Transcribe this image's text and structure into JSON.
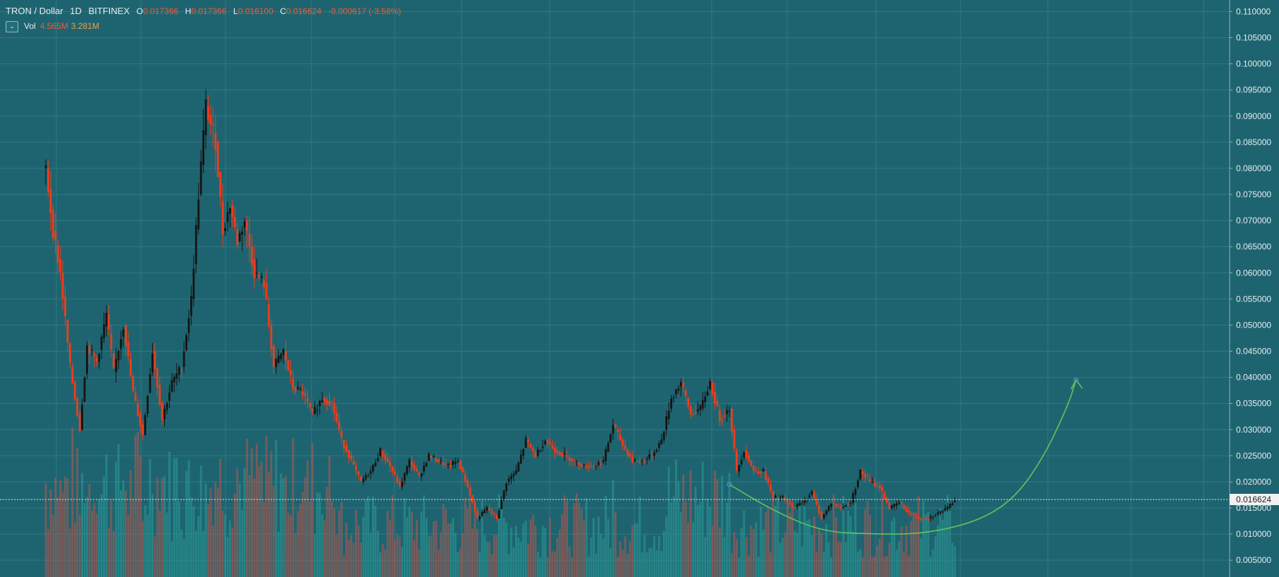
{
  "header": {
    "symbol": "TRON / Dollar",
    "interval": "1D",
    "exchange": "BITFINEX",
    "o_label": "O",
    "o_value": "0.017366",
    "h_label": "H",
    "h_value": "0.017366",
    "l_label": "L",
    "l_value": "0.016100",
    "c_label": "C",
    "c_value": "0.016624",
    "change": "-0.000617 (-3.58%)"
  },
  "volume": {
    "collapse_icon": "chevron-down-icon",
    "label": "Vol",
    "value1": "4.565M",
    "value2": "3.281M"
  },
  "colors": {
    "background": "#1e6470",
    "grid": "#2e7884",
    "axis_text": "#e6edf0",
    "candle_down": "#ef3d1a",
    "candle_up": "#141414",
    "volume_down": "#b0574d",
    "volume_up": "#2a9a94",
    "projection_curve": "#5fc45a",
    "price_line": "#e6edf0"
  },
  "price_axis": {
    "ticks": [
      "0.110000",
      "0.105000",
      "0.100000",
      "0.095000",
      "0.090000",
      "0.085000",
      "0.080000",
      "0.075000",
      "0.070000",
      "0.065000",
      "0.060000",
      "0.055000",
      "0.050000",
      "0.045000",
      "0.040000",
      "0.035000",
      "0.030000",
      "0.025000",
      "0.020000",
      "0.015000",
      "0.010000",
      "0.005000"
    ],
    "current_price": "0.016624"
  },
  "chart_data": {
    "type": "candlestick",
    "title": "TRON / Dollar",
    "interval": "1D",
    "exchange": "BITFINEX",
    "ylim": [
      0.003,
      0.111
    ],
    "y_scale": "linear",
    "grid": true,
    "close_series_approx": [
      {
        "t": 0,
        "close": 0.08
      },
      {
        "t": 3,
        "close": 0.068
      },
      {
        "t": 6,
        "close": 0.06
      },
      {
        "t": 10,
        "close": 0.042
      },
      {
        "t": 14,
        "close": 0.03
      },
      {
        "t": 17,
        "close": 0.046
      },
      {
        "t": 21,
        "close": 0.043
      },
      {
        "t": 25,
        "close": 0.052
      },
      {
        "t": 28,
        "close": 0.041
      },
      {
        "t": 32,
        "close": 0.05
      },
      {
        "t": 36,
        "close": 0.037
      },
      {
        "t": 40,
        "close": 0.029
      },
      {
        "t": 44,
        "close": 0.045
      },
      {
        "t": 48,
        "close": 0.032
      },
      {
        "t": 52,
        "close": 0.039
      },
      {
        "t": 56,
        "close": 0.042
      },
      {
        "t": 60,
        "close": 0.055
      },
      {
        "t": 63,
        "close": 0.075
      },
      {
        "t": 66,
        "close": 0.092
      },
      {
        "t": 70,
        "close": 0.085
      },
      {
        "t": 73,
        "close": 0.068
      },
      {
        "t": 76,
        "close": 0.073
      },
      {
        "t": 79,
        "close": 0.066
      },
      {
        "t": 82,
        "close": 0.07
      },
      {
        "t": 86,
        "close": 0.06
      },
      {
        "t": 90,
        "close": 0.058
      },
      {
        "t": 94,
        "close": 0.042
      },
      {
        "t": 98,
        "close": 0.045
      },
      {
        "t": 102,
        "close": 0.038
      },
      {
        "t": 106,
        "close": 0.037
      },
      {
        "t": 110,
        "close": 0.033
      },
      {
        "t": 114,
        "close": 0.036
      },
      {
        "t": 118,
        "close": 0.035
      },
      {
        "t": 122,
        "close": 0.028
      },
      {
        "t": 126,
        "close": 0.024
      },
      {
        "t": 130,
        "close": 0.02
      },
      {
        "t": 134,
        "close": 0.022
      },
      {
        "t": 138,
        "close": 0.026
      },
      {
        "t": 142,
        "close": 0.023
      },
      {
        "t": 146,
        "close": 0.019
      },
      {
        "t": 150,
        "close": 0.024
      },
      {
        "t": 154,
        "close": 0.021
      },
      {
        "t": 158,
        "close": 0.025
      },
      {
        "t": 162,
        "close": 0.024
      },
      {
        "t": 166,
        "close": 0.023
      },
      {
        "t": 170,
        "close": 0.024
      },
      {
        "t": 174,
        "close": 0.019
      },
      {
        "t": 178,
        "close": 0.013
      },
      {
        "t": 182,
        "close": 0.015
      },
      {
        "t": 186,
        "close": 0.013
      },
      {
        "t": 190,
        "close": 0.02
      },
      {
        "t": 194,
        "close": 0.022
      },
      {
        "t": 198,
        "close": 0.028
      },
      {
        "t": 202,
        "close": 0.025
      },
      {
        "t": 206,
        "close": 0.028
      },
      {
        "t": 210,
        "close": 0.026
      },
      {
        "t": 214,
        "close": 0.025
      },
      {
        "t": 218,
        "close": 0.024
      },
      {
        "t": 222,
        "close": 0.023
      },
      {
        "t": 226,
        "close": 0.023
      },
      {
        "t": 230,
        "close": 0.024
      },
      {
        "t": 234,
        "close": 0.031
      },
      {
        "t": 238,
        "close": 0.027
      },
      {
        "t": 242,
        "close": 0.024
      },
      {
        "t": 246,
        "close": 0.024
      },
      {
        "t": 250,
        "close": 0.025
      },
      {
        "t": 254,
        "close": 0.028
      },
      {
        "t": 258,
        "close": 0.036
      },
      {
        "t": 262,
        "close": 0.039
      },
      {
        "t": 266,
        "close": 0.033
      },
      {
        "t": 270,
        "close": 0.034
      },
      {
        "t": 274,
        "close": 0.039
      },
      {
        "t": 278,
        "close": 0.032
      },
      {
        "t": 282,
        "close": 0.034
      },
      {
        "t": 285,
        "close": 0.022
      },
      {
        "t": 288,
        "close": 0.026
      },
      {
        "t": 292,
        "close": 0.022
      },
      {
        "t": 296,
        "close": 0.022
      },
      {
        "t": 300,
        "close": 0.017
      },
      {
        "t": 304,
        "close": 0.017
      },
      {
        "t": 308,
        "close": 0.015
      },
      {
        "t": 312,
        "close": 0.016
      },
      {
        "t": 316,
        "close": 0.018
      },
      {
        "t": 320,
        "close": 0.013
      },
      {
        "t": 324,
        "close": 0.016
      },
      {
        "t": 328,
        "close": 0.015
      },
      {
        "t": 332,
        "close": 0.016
      },
      {
        "t": 336,
        "close": 0.022
      },
      {
        "t": 340,
        "close": 0.02
      },
      {
        "t": 344,
        "close": 0.019
      },
      {
        "t": 348,
        "close": 0.015
      },
      {
        "t": 352,
        "close": 0.016
      },
      {
        "t": 356,
        "close": 0.014
      },
      {
        "t": 360,
        "close": 0.013
      },
      {
        "t": 364,
        "close": 0.013
      },
      {
        "t": 368,
        "close": 0.014
      },
      {
        "t": 372,
        "close": 0.015
      },
      {
        "t": 375,
        "close": 0.0166
      }
    ],
    "projection_curve": [
      {
        "t": 282,
        "price": 0.0195
      },
      {
        "t": 300,
        "price": 0.0145
      },
      {
        "t": 320,
        "price": 0.0105
      },
      {
        "t": 340,
        "price": 0.01
      },
      {
        "t": 362,
        "price": 0.01
      },
      {
        "t": 385,
        "price": 0.0125
      },
      {
        "t": 400,
        "price": 0.017
      },
      {
        "t": 412,
        "price": 0.025
      },
      {
        "t": 422,
        "price": 0.035
      },
      {
        "t": 425,
        "price": 0.0395
      }
    ],
    "t_max": 435
  }
}
